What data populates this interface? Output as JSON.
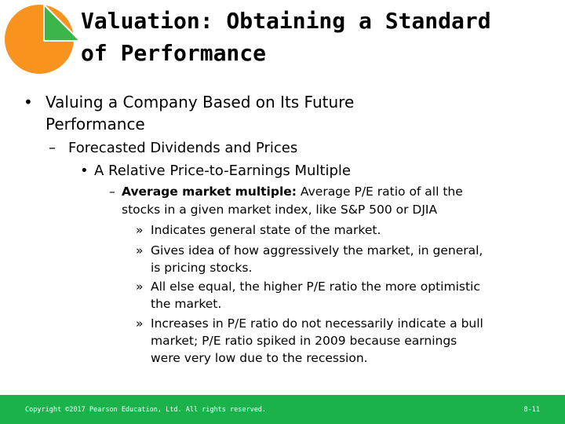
{
  "title": {
    "line1": "Valuation: Obtaining a Standard",
    "line2": "of Performance"
  },
  "bullets": {
    "l1_marker": "•",
    "l1_line1": "Valuing a Company Based on Its Future",
    "l1_line2": "Performance",
    "l2_marker": "–",
    "l2_text": "Forecasted Dividends and Prices",
    "l3_marker": "•",
    "l3_text": "A Relative Price-to-Earnings Multiple",
    "l4_marker": "–",
    "l4_bold": "Average market multiple:",
    "l4_line1_rest": " Average P/E ratio of all the",
    "l4_line2": "stocks in a given market index, like S&P 500 or DJIA",
    "l5_marker": "»",
    "l5a_line1": "Indicates general state of the market.",
    "l5b_line1": "Gives idea of how aggressively the market, in general,",
    "l5b_line2": "is pricing stocks.",
    "l5c_line1": "All else equal, the higher P/E ratio the more optimistic",
    "l5c_line2": "the market.",
    "l5d_line1": "Increases in P/E ratio do not necessarily indicate a bull",
    "l5d_line2": "market; P/E ratio spiked in 2009 because earnings",
    "l5d_line3": "were very low due to the recession."
  },
  "footer": {
    "copyright": "Copyright ©2017 Pearson Education, Ltd. All rights reserved.",
    "page": "8-11"
  },
  "colors": {
    "logo_orange": "#f7931e",
    "logo_green": "#3cb54a",
    "footer_green": "#1bb24b"
  }
}
